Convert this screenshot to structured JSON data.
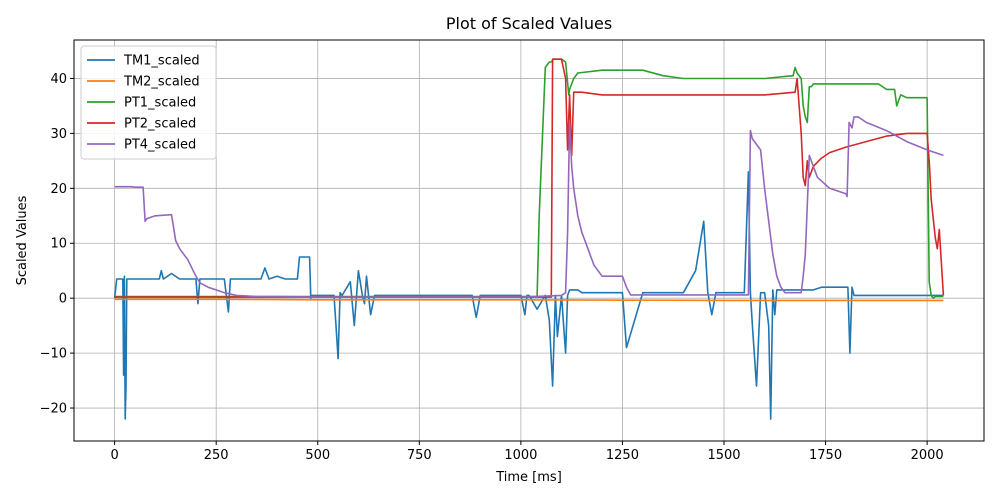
{
  "chart_data": {
    "type": "line",
    "title": "Plot of Scaled Values",
    "xlabel": "Time [ms]",
    "ylabel": "Scaled Values",
    "xlim": [
      -100,
      2140
    ],
    "ylim": [
      -26,
      47
    ],
    "xticks": [
      0,
      250,
      500,
      750,
      1000,
      1250,
      1500,
      1750,
      2000
    ],
    "yticks": [
      -20,
      -10,
      0,
      10,
      20,
      30,
      40
    ],
    "xtick_labels": [
      "0",
      "250",
      "500",
      "750",
      "1000",
      "1250",
      "1500",
      "1750",
      "2000"
    ],
    "ytick_labels": [
      "−20",
      "−10",
      "0",
      "10",
      "20",
      "30",
      "40"
    ],
    "grid": true,
    "legend_position": "top-left",
    "series": [
      {
        "name": "TM1_scaled",
        "color": "#1f77b4",
        "x": [
          0,
          5,
          10,
          20,
          22,
          24,
          26,
          28,
          30,
          40,
          60,
          80,
          110,
          115,
          120,
          140,
          160,
          180,
          200,
          205,
          210,
          230,
          250,
          270,
          280,
          285,
          290,
          300,
          320,
          340,
          360,
          370,
          380,
          400,
          420,
          440,
          450,
          455,
          480,
          483,
          486,
          500,
          540,
          545,
          550,
          555,
          560,
          580,
          590,
          600,
          610,
          615,
          620,
          630,
          640,
          650,
          700,
          800,
          880,
          890,
          900,
          950,
          1000,
          1010,
          1015,
          1020,
          1040,
          1060,
          1070,
          1078,
          1085,
          1090,
          1100,
          1110,
          1115,
          1120,
          1130,
          1140,
          1150,
          1200,
          1250,
          1260,
          1300,
          1350,
          1400,
          1430,
          1450,
          1460,
          1470,
          1480,
          1500,
          1540,
          1550,
          1560,
          1565,
          1570,
          1580,
          1590,
          1600,
          1610,
          1615,
          1620,
          1625,
          1630,
          1650,
          1680,
          1700,
          1720,
          1740,
          1760,
          1800,
          1805,
          1810,
          1815,
          1820,
          1900,
          2000,
          2040
        ],
        "y": [
          0,
          3.5,
          3.5,
          3.5,
          -14,
          4,
          -22,
          -16,
          3.5,
          3.5,
          3.5,
          3.5,
          3.5,
          5,
          3.5,
          4.5,
          3.5,
          3.5,
          3.5,
          -1,
          3.5,
          3.5,
          3.5,
          3.5,
          -2.5,
          3.5,
          3.5,
          3.5,
          3.5,
          3.5,
          3.5,
          5.5,
          3.5,
          4,
          3.5,
          3.5,
          3.5,
          7.5,
          7.5,
          0,
          0.5,
          0.5,
          0.5,
          -5,
          -11,
          1,
          0.5,
          3,
          -5,
          5,
          0.5,
          -1,
          4,
          -3,
          0.5,
          0.5,
          0.5,
          0.5,
          0.5,
          -3.5,
          0.5,
          0.5,
          0.5,
          -3,
          0.5,
          0.5,
          -2,
          0.5,
          -4,
          -16,
          0.5,
          -7,
          0.5,
          -10,
          0.5,
          1.5,
          1.5,
          1.5,
          1,
          1,
          1,
          -9,
          1,
          1,
          1,
          5,
          14,
          1,
          -3,
          1,
          1,
          1,
          1,
          23,
          1,
          -5,
          -16,
          1,
          1,
          -5,
          -22,
          1.5,
          -3,
          1.5,
          1.5,
          1.5,
          1.5,
          1.5,
          2,
          2,
          2,
          2,
          -10,
          2,
          0.5,
          0.5,
          0.5,
          0.5
        ]
      },
      {
        "name": "TM2_scaled",
        "color": "#ff7f0e",
        "x": [
          0,
          250,
          500,
          1000,
          1500,
          2000,
          2040
        ],
        "y": [
          -0.2,
          -0.2,
          -0.3,
          -0.3,
          -0.4,
          -0.4,
          -0.4
        ]
      },
      {
        "name": "PT1_scaled",
        "color": "#2ca02c",
        "x": [
          0,
          1000,
          1040,
          1045,
          1060,
          1070,
          1075,
          1080,
          1090,
          1100,
          1110,
          1118,
          1120,
          1130,
          1140,
          1200,
          1300,
          1350,
          1400,
          1500,
          1600,
          1670,
          1675,
          1680,
          1690,
          1695,
          1700,
          1705,
          1710,
          1715,
          1720,
          1760,
          1800,
          1880,
          1900,
          1920,
          1925,
          1935,
          1950,
          2000,
          2005,
          2010,
          2015,
          2020,
          2030,
          2040
        ],
        "y": [
          0.3,
          0.3,
          0.3,
          15,
          42,
          43,
          43,
          43.5,
          43.5,
          43.5,
          43,
          37,
          38,
          40,
          41,
          41.5,
          41.5,
          40.5,
          40,
          40,
          40,
          40.5,
          42,
          41,
          40,
          35,
          33,
          32,
          38.5,
          38.5,
          39,
          39,
          39,
          39,
          38,
          38,
          35,
          37,
          36.5,
          36.5,
          3,
          0.5,
          0,
          0.3,
          0.3,
          0.3
        ]
      },
      {
        "name": "PT2_scaled",
        "color": "#d62728",
        "x": [
          0,
          1000,
          1060,
          1075,
          1078,
          1080,
          1090,
          1100,
          1110,
          1115,
          1120,
          1125,
          1130,
          1150,
          1200,
          1300,
          1400,
          1500,
          1600,
          1675,
          1680,
          1690,
          1695,
          1700,
          1705,
          1710,
          1720,
          1740,
          1760,
          1800,
          1850,
          1900,
          1950,
          1990,
          2000,
          2005,
          2010,
          2020,
          2025,
          2030,
          2040
        ],
        "y": [
          0.2,
          0.2,
          0.2,
          0.2,
          43.5,
          43.5,
          43.5,
          43.5,
          40,
          27,
          37,
          26,
          37.5,
          37.5,
          37,
          37,
          37,
          37,
          37,
          37.5,
          40,
          30,
          22,
          20.5,
          25,
          22,
          24,
          25.5,
          26.5,
          27.5,
          28.5,
          29.5,
          30,
          30,
          30,
          25,
          18,
          11,
          9,
          12.5,
          0.5
        ]
      },
      {
        "name": "PT4_scaled",
        "color": "#9467bd",
        "x": [
          0,
          40,
          50,
          70,
          75,
          80,
          100,
          140,
          145,
          150,
          160,
          180,
          200,
          210,
          230,
          250,
          270,
          300,
          350,
          400,
          500,
          800,
          1000,
          1100,
          1110,
          1115,
          1120,
          1125,
          1130,
          1140,
          1150,
          1160,
          1170,
          1180,
          1200,
          1220,
          1250,
          1260,
          1270,
          1300,
          1400,
          1500,
          1530,
          1560,
          1565,
          1570,
          1590,
          1600,
          1610,
          1620,
          1630,
          1640,
          1650,
          1680,
          1690,
          1695,
          1700,
          1710,
          1730,
          1760,
          1800,
          1803,
          1808,
          1815,
          1820,
          1830,
          1850,
          1900,
          1950,
          2000,
          2040
        ],
        "y": [
          20.3,
          20.3,
          20.2,
          20.2,
          14,
          14.5,
          15,
          15.2,
          13,
          10.5,
          9,
          7,
          4,
          2.8,
          2,
          1.5,
          1,
          0.5,
          0.3,
          0.3,
          0.2,
          0.2,
          0.2,
          0.5,
          1,
          12,
          32,
          24,
          20,
          15,
          12,
          10,
          8,
          6,
          4,
          4,
          4,
          2,
          0.6,
          0.6,
          0.6,
          0.6,
          0.6,
          0.6,
          30.5,
          29,
          27,
          20,
          14,
          8,
          4,
          2,
          1,
          1,
          1,
          4,
          8,
          26,
          22,
          20,
          19,
          18.5,
          32,
          31,
          33,
          33,
          32,
          30.5,
          28.5,
          27,
          26
        ]
      }
    ]
  }
}
